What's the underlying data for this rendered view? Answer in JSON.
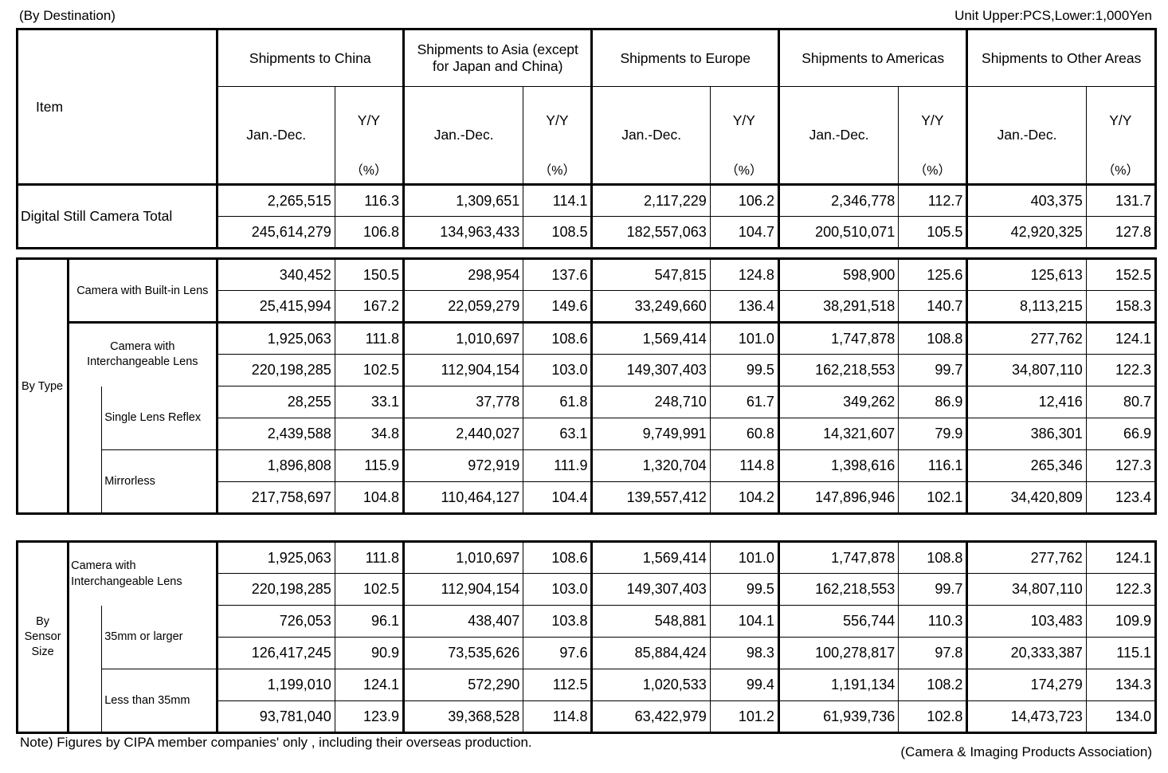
{
  "header": {
    "left": "(By Destination)",
    "right": "Unit Upper:PCS,Lower:1,000Yen"
  },
  "columns": {
    "item": "Item",
    "regions": [
      "Shipments to China",
      "Shipments to Asia (except for Japan and China)",
      "Shipments to Europe",
      "Shipments to Americas",
      "Shipments to Other Areas"
    ],
    "period": "Jan.-Dec.",
    "yy": "Y/Y",
    "pct": "（%）"
  },
  "total": {
    "label": "Digital Still Camera Total",
    "rows": [
      [
        "2,265,515",
        "116.3",
        "1,309,651",
        "114.1",
        "2,117,229",
        "106.2",
        "2,346,778",
        "112.7",
        "403,375",
        "131.7"
      ],
      [
        "245,614,279",
        "106.8",
        "134,963,433",
        "108.5",
        "182,557,063",
        "104.7",
        "200,510,071",
        "105.5",
        "42,920,325",
        "127.8"
      ]
    ]
  },
  "by_type": {
    "label": "By Type",
    "builtin": {
      "label": "Camera with Built-in Lens",
      "rows": [
        [
          "340,452",
          "150.5",
          "298,954",
          "137.6",
          "547,815",
          "124.8",
          "598,900",
          "125.6",
          "125,613",
          "152.5"
        ],
        [
          "25,415,994",
          "167.2",
          "22,059,279",
          "149.6",
          "33,249,660",
          "136.4",
          "38,291,518",
          "140.7",
          "8,113,215",
          "158.3"
        ]
      ]
    },
    "ilc": {
      "label": "Camera with Interchangeable Lens",
      "rows": [
        [
          "1,925,063",
          "111.8",
          "1,010,697",
          "108.6",
          "1,569,414",
          "101.0",
          "1,747,878",
          "108.8",
          "277,762",
          "124.1"
        ],
        [
          "220,198,285",
          "102.5",
          "112,904,154",
          "103.0",
          "149,307,403",
          "99.5",
          "162,218,553",
          "99.7",
          "34,807,110",
          "122.3"
        ]
      ]
    },
    "slr": {
      "label": "Single Lens Reflex",
      "rows": [
        [
          "28,255",
          "33.1",
          "37,778",
          "61.8",
          "248,710",
          "61.7",
          "349,262",
          "86.9",
          "12,416",
          "80.7"
        ],
        [
          "2,439,588",
          "34.8",
          "2,440,027",
          "63.1",
          "9,749,991",
          "60.8",
          "14,321,607",
          "79.9",
          "386,301",
          "66.9"
        ]
      ]
    },
    "mirrorless": {
      "label": "Mirrorless",
      "rows": [
        [
          "1,896,808",
          "115.9",
          "972,919",
          "111.9",
          "1,320,704",
          "114.8",
          "1,398,616",
          "116.1",
          "265,346",
          "127.3"
        ],
        [
          "217,758,697",
          "104.8",
          "110,464,127",
          "104.4",
          "139,557,412",
          "104.2",
          "147,896,946",
          "102.1",
          "34,420,809",
          "123.4"
        ]
      ]
    }
  },
  "by_sensor": {
    "label": "By Sensor Size",
    "ilc": {
      "label": "Camera with Interchangeable Lens",
      "rows": [
        [
          "1,925,063",
          "111.8",
          "1,010,697",
          "108.6",
          "1,569,414",
          "101.0",
          "1,747,878",
          "108.8",
          "277,762",
          "124.1"
        ],
        [
          "220,198,285",
          "102.5",
          "112,904,154",
          "103.0",
          "149,307,403",
          "99.5",
          "162,218,553",
          "99.7",
          "34,807,110",
          "122.3"
        ]
      ]
    },
    "ff": {
      "label": "35mm or larger",
      "rows": [
        [
          "726,053",
          "96.1",
          "438,407",
          "103.8",
          "548,881",
          "104.1",
          "556,744",
          "110.3",
          "103,483",
          "109.9"
        ],
        [
          "126,417,245",
          "90.9",
          "73,535,626",
          "97.6",
          "85,884,424",
          "98.3",
          "100,278,817",
          "97.8",
          "20,333,387",
          "115.1"
        ]
      ]
    },
    "less": {
      "label": "Less than 35mm",
      "rows": [
        [
          "1,199,010",
          "124.1",
          "572,290",
          "112.5",
          "1,020,533",
          "99.4",
          "1,191,134",
          "108.2",
          "174,279",
          "134.3"
        ],
        [
          "93,781,040",
          "123.9",
          "39,368,528",
          "114.8",
          "63,422,979",
          "101.2",
          "61,939,736",
          "102.8",
          "14,473,723",
          "134.0"
        ]
      ]
    }
  },
  "footer": {
    "note": "Note)  Figures by CIPA member companies' only , including their overseas production.",
    "source": "(Camera & Imaging Products Association)"
  }
}
